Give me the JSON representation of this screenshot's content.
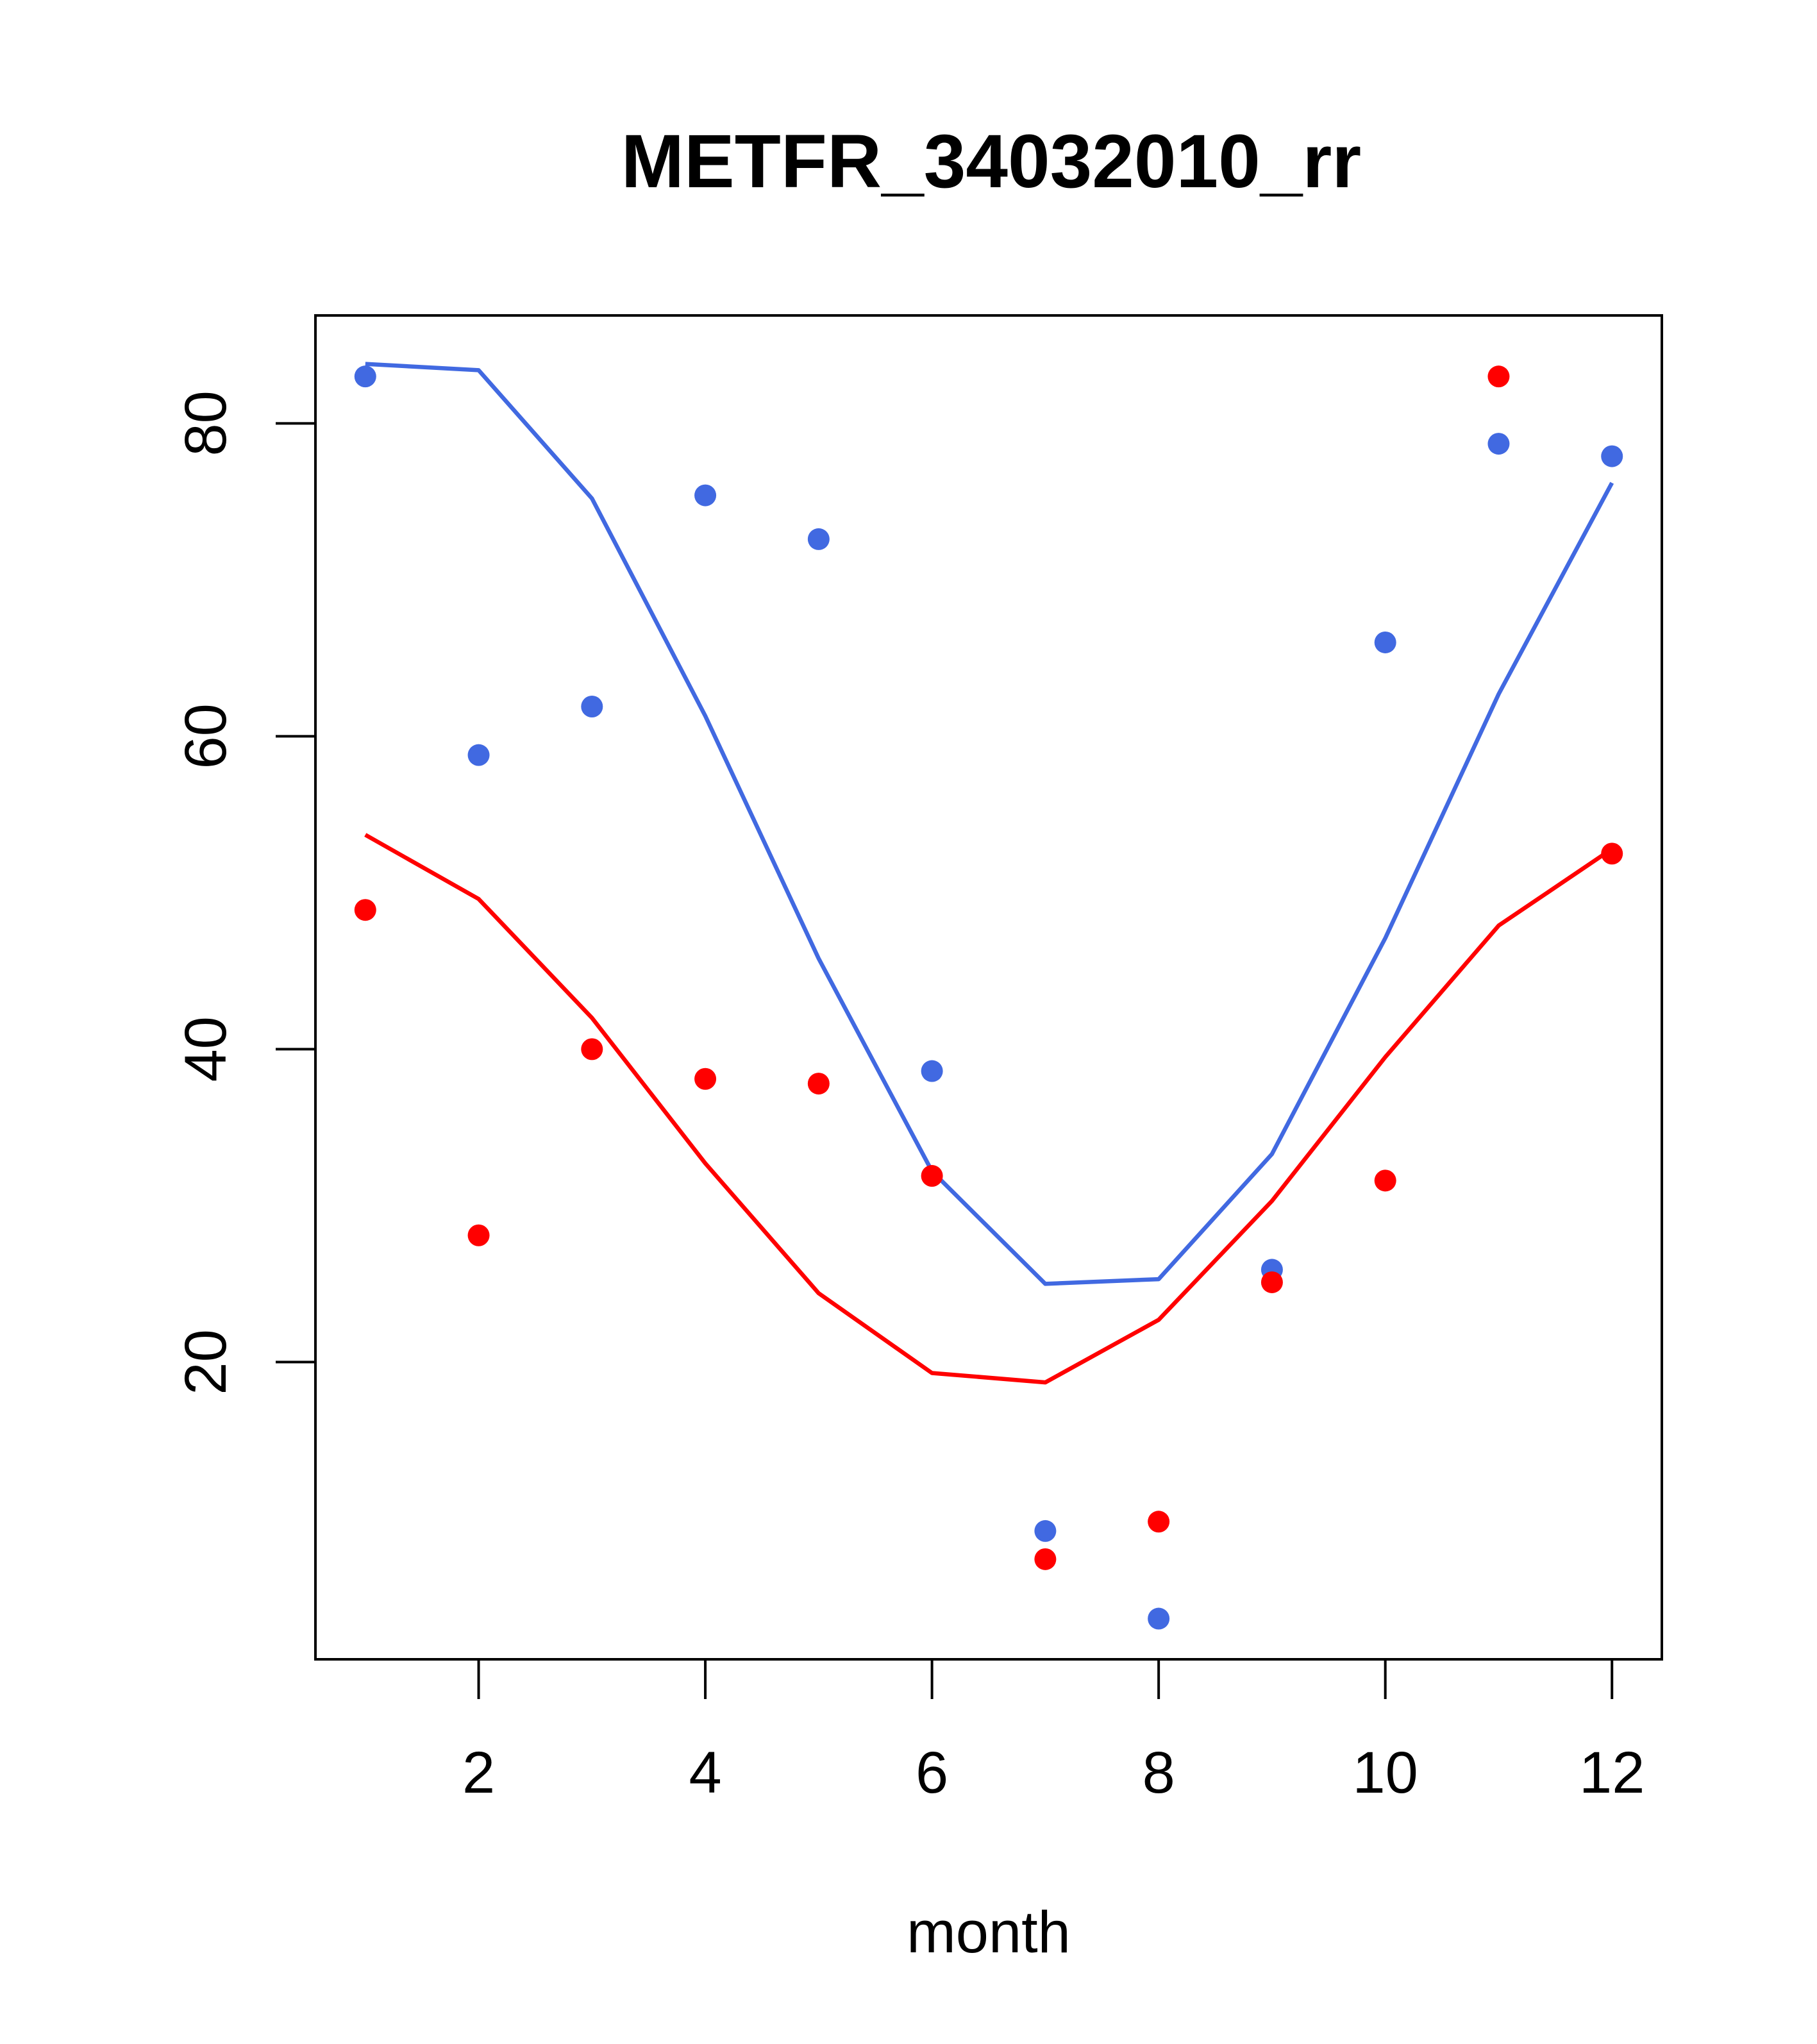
{
  "chart_data": {
    "type": "scatter",
    "title": "METFR_34032010_rr",
    "xlabel": "month",
    "ylabel": "",
    "xlim": [
      0.56,
      12.44
    ],
    "ylim": [
      1.0,
      86.9
    ],
    "x_ticks": [
      2,
      4,
      6,
      8,
      10,
      12
    ],
    "y_ticks": [
      20,
      40,
      60,
      80
    ],
    "grid": false,
    "legend": "none",
    "series": [
      {
        "color": "#4169E1",
        "kind": "points",
        "x": [
          1,
          2,
          3,
          4,
          5,
          6,
          7,
          8,
          9,
          10,
          11,
          12
        ],
        "y": [
          83.0,
          58.8,
          61.9,
          75.4,
          72.6,
          38.6,
          9.2,
          3.6,
          25.9,
          66.0,
          78.7,
          77.9
        ]
      },
      {
        "color": "#4169E1",
        "kind": "line",
        "x": [
          1,
          2,
          3,
          4,
          5,
          6,
          7,
          8,
          9,
          10,
          11,
          12
        ],
        "y": [
          83.8,
          83.4,
          75.2,
          61.3,
          45.8,
          32.2,
          25.0,
          25.3,
          33.3,
          47.1,
          62.7,
          76.2
        ]
      },
      {
        "color": "#FF0000",
        "kind": "points",
        "x": [
          1,
          2,
          3,
          4,
          5,
          6,
          7,
          8,
          9,
          10,
          11,
          12
        ],
        "y": [
          48.9,
          28.1,
          40.0,
          38.1,
          37.8,
          31.9,
          7.4,
          9.8,
          25.1,
          31.6,
          83.0,
          52.5
        ]
      },
      {
        "color": "#FF0000",
        "kind": "line",
        "x": [
          1,
          2,
          3,
          4,
          5,
          6,
          7,
          8,
          9,
          10,
          11,
          12
        ],
        "y": [
          53.7,
          49.6,
          42.0,
          32.7,
          24.4,
          19.3,
          18.7,
          22.7,
          30.3,
          39.5,
          47.9,
          52.8
        ]
      }
    ]
  }
}
